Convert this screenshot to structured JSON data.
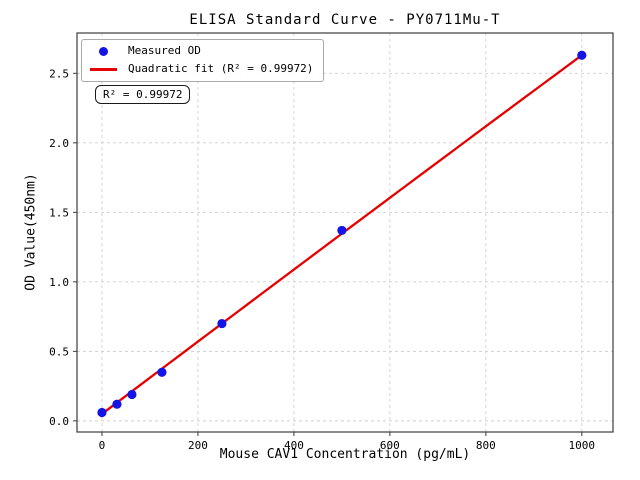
{
  "chart_data": {
    "type": "scatter",
    "title": "ELISA Standard Curve - PY0711Mu-T",
    "xlabel": "Mouse CAV1 Concentration (pg/mL)",
    "ylabel": "OD Value(450nm)",
    "annotation": "R² = 0.99972",
    "grid": true,
    "legend_position": "upper-left",
    "x_ticks": [
      0,
      200,
      400,
      600,
      800,
      1000
    ],
    "x_tick_labels": [
      "0",
      "200",
      "400",
      "600",
      "800",
      "1000"
    ],
    "y_ticks": [
      0.0,
      0.5,
      1.0,
      1.5,
      2.0,
      2.5
    ],
    "y_tick_labels": [
      "0.0",
      "0.5",
      "1.0",
      "1.5",
      "2.0",
      "2.5"
    ],
    "xlim": [
      -52,
      1065
    ],
    "ylim": [
      -0.08,
      2.79
    ],
    "series": [
      {
        "name": "Measured OD",
        "type": "scatter",
        "color": "#1414e6",
        "x": [
          0,
          31.25,
          62.5,
          125,
          250,
          500,
          1000
        ],
        "y": [
          0.06,
          0.12,
          0.19,
          0.35,
          0.7,
          1.37,
          2.63
        ]
      },
      {
        "name": "Quadratic fit (R² = 0.99972)",
        "type": "line",
        "color": "#e60000",
        "fit": {
          "a": 0.05,
          "b": 0.002607,
          "c": -2.67e-08
        },
        "x_range": [
          0,
          1000
        ],
        "r_squared": 0.99972
      }
    ]
  },
  "legend": {
    "items": [
      {
        "label": "Measured OD"
      },
      {
        "label": "Quadratic fit (R² = 0.99972)"
      }
    ]
  }
}
